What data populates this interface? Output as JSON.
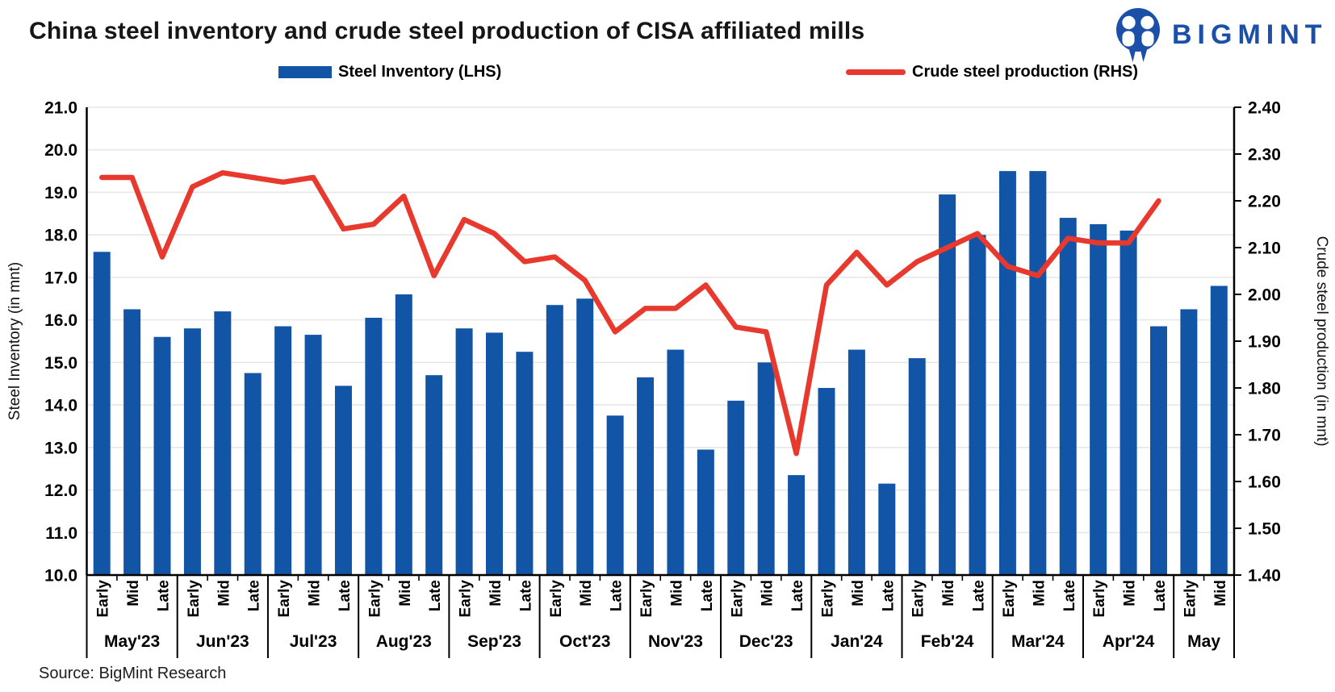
{
  "header": {
    "title": "China steel inventory and crude steel production of CISA affiliated mills",
    "brand": "BIGMINT"
  },
  "legend": {
    "inventory_label": "Steel Inventory (LHS)",
    "production_label": "Crude steel production (RHS)"
  },
  "source": "Source: BigMint Research",
  "colors": {
    "bar": "#1254a6",
    "line": "#e8392e",
    "grid": "#e7e7e7",
    "axis": "#000000",
    "brand": "#1b4fa8"
  },
  "icons": {
    "logo": "bigmint-owl-icon"
  },
  "chart_data": {
    "type": "bar+line combo",
    "title": "China steel inventory and crude steel production of CISA affiliated mills",
    "grid": "horizontal only",
    "left_axis": {
      "label": "Steel Inventory (in mnt)",
      "min": 10.0,
      "max": 21.0,
      "tick_labels": [
        "21.0",
        "20.0",
        "19.0",
        "18.0",
        "17.0",
        "16.0",
        "15.0",
        "14.0",
        "13.0",
        "12.0",
        "11.0",
        "10.0"
      ]
    },
    "right_axis": {
      "label": "Crude steel production (in mnt)",
      "min": 1.4,
      "max": 2.4,
      "tick_labels": [
        "2.40",
        "2.30",
        "2.20",
        "2.10",
        "2.00",
        "1.90",
        "1.80",
        "1.70",
        "1.60",
        "1.50",
        "1.40"
      ]
    },
    "months": [
      {
        "label": "May'23",
        "periods": [
          "Early",
          "Mid",
          "Late"
        ]
      },
      {
        "label": "Jun'23",
        "periods": [
          "Early",
          "Mid",
          "Late"
        ]
      },
      {
        "label": "Jul'23",
        "periods": [
          "Early",
          "Mid",
          "Late"
        ]
      },
      {
        "label": "Aug'23",
        "periods": [
          "Early",
          "Mid",
          "Late"
        ]
      },
      {
        "label": "Sep'23",
        "periods": [
          "Early",
          "Mid",
          "Late"
        ]
      },
      {
        "label": "Oct'23",
        "periods": [
          "Early",
          "Mid",
          "Late"
        ]
      },
      {
        "label": "Nov'23",
        "periods": [
          "Early",
          "Mid",
          "Late"
        ]
      },
      {
        "label": "Dec'23",
        "periods": [
          "Early",
          "Mid",
          "Late"
        ]
      },
      {
        "label": "Jan'24",
        "periods": [
          "Early",
          "Mid",
          "Late"
        ]
      },
      {
        "label": "Feb'24",
        "periods": [
          "Early",
          "Mid",
          "Late"
        ]
      },
      {
        "label": "Mar'24",
        "periods": [
          "Early",
          "Mid",
          "Late"
        ]
      },
      {
        "label": "Apr'24",
        "periods": [
          "Early",
          "Mid",
          "Late"
        ]
      },
      {
        "label": "May",
        "periods": [
          "Early",
          "Mid"
        ]
      }
    ],
    "series": [
      {
        "name": "Steel Inventory (LHS)",
        "type": "bar",
        "axis": "left",
        "values": [
          17.6,
          16.25,
          15.6,
          15.8,
          16.2,
          14.75,
          15.85,
          15.65,
          14.45,
          16.05,
          16.6,
          14.7,
          15.8,
          15.7,
          15.25,
          16.35,
          16.5,
          13.75,
          14.65,
          15.3,
          12.95,
          14.1,
          15.0,
          12.35,
          14.4,
          15.3,
          12.15,
          15.1,
          18.95,
          18.0,
          19.5,
          19.5,
          18.4,
          18.25,
          18.1,
          15.85,
          16.25,
          16.8
        ]
      },
      {
        "name": "Crude steel production (RHS)",
        "type": "line",
        "axis": "right",
        "values": [
          2.25,
          2.25,
          2.08,
          2.23,
          2.26,
          2.25,
          2.24,
          2.25,
          2.14,
          2.15,
          2.21,
          2.04,
          2.16,
          2.13,
          2.07,
          2.08,
          2.03,
          1.92,
          1.97,
          1.97,
          2.02,
          1.93,
          1.92,
          1.66,
          2.02,
          2.09,
          2.02,
          2.07,
          2.1,
          2.13,
          2.06,
          2.04,
          2.12,
          2.11,
          2.11,
          2.2,
          null,
          null
        ]
      }
    ]
  }
}
